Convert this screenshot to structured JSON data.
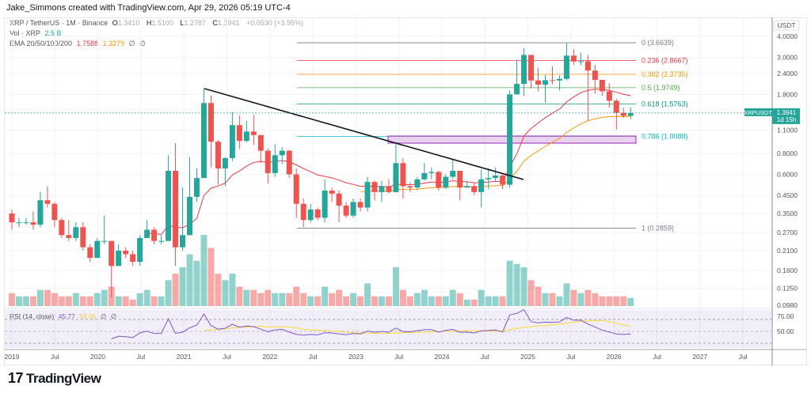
{
  "credit": "Jake_Simmons created with TradingView.com, Apr 29, 2026 05:19 UTC-4",
  "legend": {
    "symbol": "XRP / TetherUS · 1M · Binance",
    "o_label": "O",
    "o": "1.3410",
    "h_label": "H",
    "h": "1.5100",
    "l_label": "L",
    "l": "1.2787",
    "c_label": "C",
    "c": "1.3941",
    "change": "+0.0530 (+3.95%)",
    "vol_label": "Vol · XRP",
    "vol": "2.5 B",
    "ema_label": "EMA 20/50/100/200",
    "ema20": "1.7588",
    "ema50": "1.3279",
    "ema100": "∅",
    "ema200": "∅",
    "rsi_label": "RSI (14, close)",
    "rsi": "45.77",
    "rsi_ma": "59.05",
    "rsi_x1": "∅",
    "rsi_x2": "∅"
  },
  "price_axis": {
    "currency": "USDT",
    "ticks": [
      "4.0000",
      "3.0000",
      "2.4000",
      "1.8000",
      "1.1000",
      "0.8000",
      "0.6000",
      "0.4500",
      "0.3500",
      "0.2700",
      "0.2100",
      "0.1600",
      "0.1250",
      "0.0980"
    ],
    "last_symbol": "XRPUSDT",
    "last_price": "1.3941",
    "countdown": "1d 15h"
  },
  "rsi_axis": {
    "ticks": [
      "75.00",
      "50.00"
    ]
  },
  "time_axis": [
    "2019",
    "Jul",
    "2020",
    "Jul",
    "2021",
    "Jul",
    "2022",
    "Jul",
    "2023",
    "Jul",
    "2024",
    "Jul",
    "2025",
    "Jul",
    "2026",
    "Jul",
    "2027",
    "Jul"
  ],
  "fib": [
    {
      "label": "0 (3.6639)",
      "price": 3.6639,
      "color": "#787b86"
    },
    {
      "label": "0.236 (2.8667)",
      "price": 2.8667,
      "color": "#f23645"
    },
    {
      "label": "0.382 (2.3735)",
      "price": 2.3735,
      "color": "#ff9800"
    },
    {
      "label": "0.5 (1.9749)",
      "price": 1.9749,
      "color": "#4caf50"
    },
    {
      "label": "0.618 (1.5763)",
      "price": 1.5763,
      "color": "#089981"
    },
    {
      "label": "0.786 (1.0088)",
      "price": 1.0088,
      "color": "#00bcd4"
    },
    {
      "label": "1 (0.2859)",
      "price": 0.2859,
      "color": "#787b86"
    }
  ],
  "colors": {
    "up": "#26a69a",
    "down": "#ef5350",
    "ema20": "#f23645",
    "ema50": "#ff9800",
    "rsi": "#7e57c2",
    "rsi_ma": "#fdd835",
    "zone": "#9c27b0"
  },
  "brand": "TradingView",
  "chart_data": {
    "type": "candlestick",
    "scale": "log",
    "start": "2019-01",
    "interval": "1M",
    "first_open": 0.35,
    "close": [
      0.31,
      0.31,
      0.31,
      0.3,
      0.42,
      0.4,
      0.32,
      0.26,
      0.25,
      0.29,
      0.22,
      0.19,
      0.24,
      0.24,
      0.17,
      0.21,
      0.2,
      0.18,
      0.25,
      0.28,
      0.24,
      0.24,
      0.63,
      0.22,
      0.26,
      0.44,
      0.57,
      1.6,
      0.94,
      0.65,
      0.75,
      1.18,
      0.95,
      1.08,
      1.03,
      0.83,
      0.61,
      0.78,
      0.83,
      0.6,
      0.4,
      0.32,
      0.37,
      0.33,
      0.48,
      0.46,
      0.39,
      0.34,
      0.41,
      0.38,
      0.54,
      0.47,
      0.51,
      0.47,
      0.7,
      0.51,
      0.5,
      0.56,
      0.61,
      0.62,
      0.5,
      0.58,
      0.63,
      0.5,
      0.51,
      0.47,
      0.56,
      0.57,
      0.59,
      0.52,
      1.8,
      2.08,
      3.1,
      2.18,
      2.06,
      2.19,
      2.18,
      2.23,
      3.07,
      2.83,
      2.84,
      2.5,
      2.2,
      1.88,
      1.65,
      1.4,
      1.341,
      1.3941
    ],
    "high": [
      0.37,
      0.33,
      0.33,
      0.36,
      0.47,
      0.51,
      0.41,
      0.33,
      0.32,
      0.31,
      0.31,
      0.23,
      0.25,
      0.34,
      0.24,
      0.23,
      0.22,
      0.21,
      0.26,
      0.32,
      0.29,
      0.26,
      0.78,
      0.92,
      0.5,
      0.76,
      0.65,
      1.96,
      1.77,
      0.96,
      0.76,
      1.41,
      1.35,
      1.25,
      1.36,
      1.0,
      0.86,
      0.91,
      0.87,
      0.84,
      0.65,
      0.43,
      0.4,
      0.38,
      0.56,
      0.5,
      0.48,
      0.41,
      0.43,
      0.43,
      0.58,
      0.55,
      0.55,
      0.56,
      0.93,
      0.75,
      0.54,
      0.58,
      0.7,
      0.66,
      0.63,
      0.6,
      0.74,
      0.63,
      0.55,
      0.53,
      0.64,
      0.65,
      0.66,
      0.6,
      1.9,
      2.9,
      3.4,
      3.0,
      2.6,
      2.35,
      2.65,
      2.34,
      3.66,
      3.35,
      3.19,
      3.1,
      2.7,
      2.2,
      2.1,
      1.7,
      1.5,
      1.51
    ],
    "low": [
      0.28,
      0.29,
      0.3,
      0.28,
      0.29,
      0.38,
      0.29,
      0.25,
      0.24,
      0.24,
      0.21,
      0.18,
      0.19,
      0.23,
      0.11,
      0.17,
      0.19,
      0.17,
      0.17,
      0.25,
      0.23,
      0.23,
      0.24,
      0.17,
      0.21,
      0.26,
      0.41,
      0.57,
      0.66,
      0.52,
      0.51,
      0.72,
      0.85,
      0.93,
      0.9,
      0.7,
      0.53,
      0.58,
      0.69,
      0.57,
      0.33,
      0.29,
      0.31,
      0.32,
      0.31,
      0.41,
      0.31,
      0.33,
      0.33,
      0.36,
      0.36,
      0.42,
      0.41,
      0.46,
      0.47,
      0.43,
      0.47,
      0.48,
      0.55,
      0.56,
      0.48,
      0.49,
      0.56,
      0.42,
      0.5,
      0.45,
      0.38,
      0.49,
      0.54,
      0.49,
      0.5,
      1.96,
      1.77,
      1.95,
      1.88,
      1.61,
      2.07,
      1.9,
      2.18,
      2.7,
      2.69,
      1.25,
      1.82,
      1.77,
      1.5,
      1.11,
      1.3,
      1.2787
    ],
    "volume_billions": [
      4,
      3,
      3,
      3,
      5,
      5,
      4,
      3,
      3,
      4,
      3,
      3,
      4,
      5,
      6,
      3,
      3,
      2,
      4,
      5,
      3,
      3,
      8,
      10,
      12,
      16,
      14,
      22,
      18,
      10,
      8,
      10,
      6,
      5,
      5,
      4,
      5,
      4,
      4,
      4,
      6,
      4,
      3,
      3,
      6,
      4,
      5,
      3,
      4,
      3,
      7,
      3,
      3,
      3,
      12,
      5,
      3,
      4,
      5,
      3,
      3,
      3,
      5,
      4,
      2,
      2,
      5,
      3,
      3,
      3,
      14,
      13,
      12,
      8,
      6,
      4,
      4,
      3,
      7,
      5,
      4,
      5,
      4,
      3,
      3,
      3,
      3,
      2.5
    ]
  }
}
